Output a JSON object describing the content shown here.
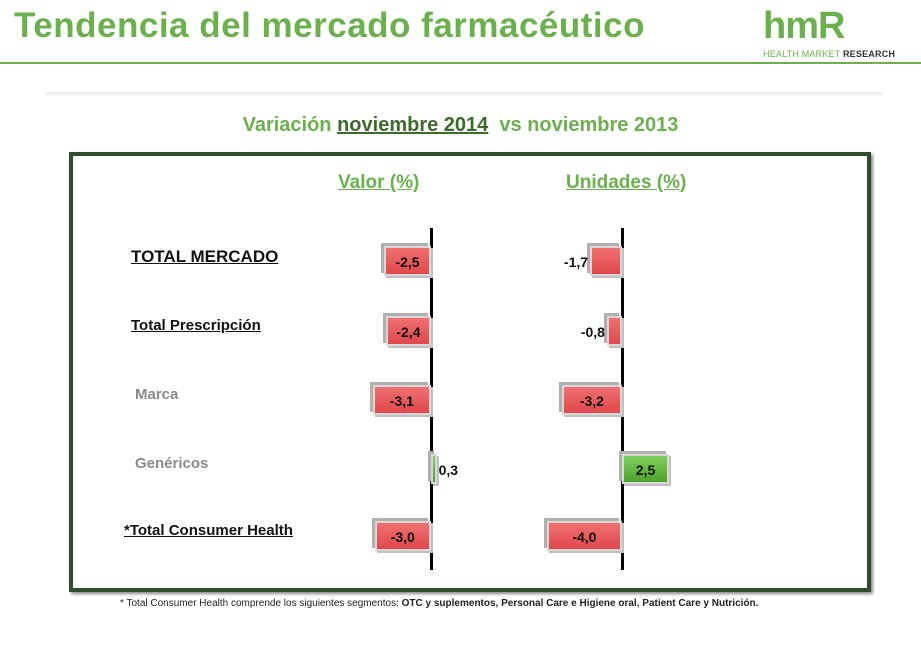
{
  "header": {
    "title": "Tendencia del mercado farmacéutico",
    "logo_mark": "hmR",
    "logo_sub_green": "HEALTH MARKET",
    "logo_sub_dark": "RESEARCH"
  },
  "subtitle": {
    "prefix": "Variación",
    "highlight": "noviembre 2014",
    "suffix": "vs noviembre 2013"
  },
  "footnote": {
    "plain": "* Total Consumer Health comprende los siguientes segmentos:",
    "bold": "OTC y suplementos, Personal Care e Higiene oral, Patient Care y Nutrición."
  },
  "colors": {
    "negative": "#e0484c",
    "positive": "#4ea12c",
    "accent": "#6ab04c",
    "frame": "#2e4d2c"
  },
  "chart_data": {
    "type": "bar",
    "orientation": "horizontal",
    "categories": [
      "TOTAL MERCADO",
      "Total Prescripción",
      "Marca",
      "Genéricos",
      "*Total Consumer Health"
    ],
    "series": [
      {
        "name": "Valor (%)",
        "values": [
          -2.5,
          -2.4,
          -3.1,
          0.3,
          -3.0
        ],
        "labels": [
          "-2,5",
          "-2,4",
          "-3,1",
          "0,3",
          "-3,0"
        ]
      },
      {
        "name": "Unidades (%)",
        "values": [
          -1.7,
          -0.8,
          -3.2,
          2.5,
          -4.0
        ],
        "labels": [
          "-1,7",
          "-0,8",
          "-3,2",
          "2,5",
          "-4,0"
        ]
      }
    ]
  }
}
